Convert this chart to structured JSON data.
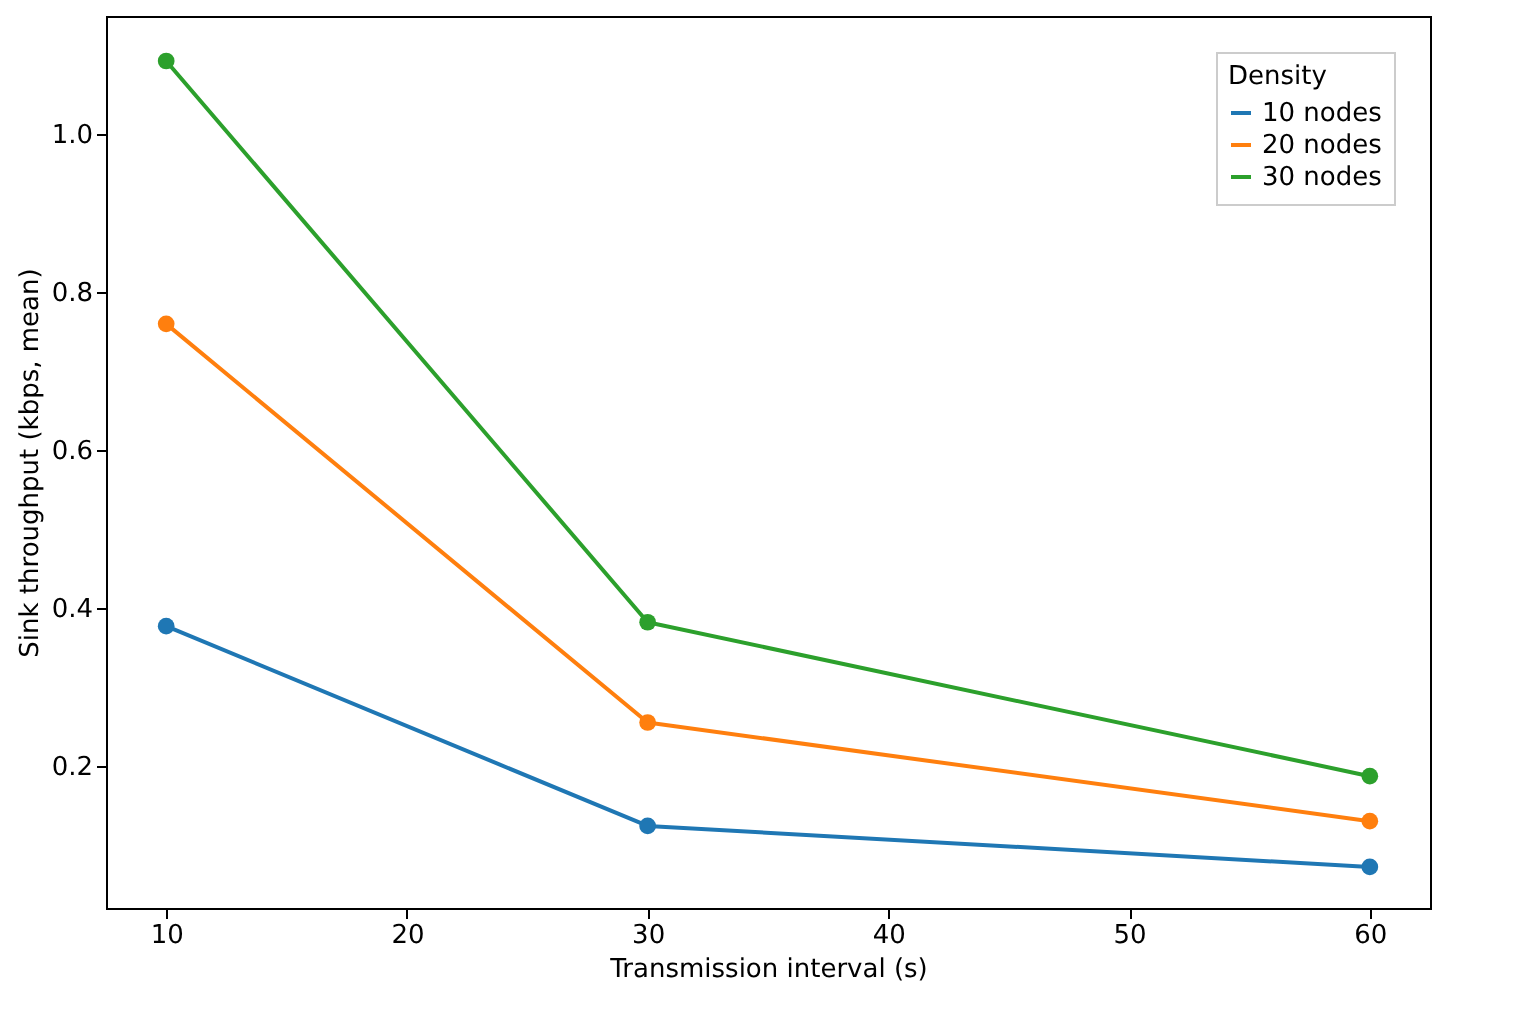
{
  "chart_data": {
    "type": "line",
    "xlabel": "Transmission interval (s)",
    "ylabel": "Sink throughput (kbps, mean)",
    "legend_title": "Density",
    "x": [
      10,
      30,
      60
    ],
    "series": [
      {
        "name": "10 nodes",
        "color": "#1f77b4",
        "values": [
          0.377,
          0.124,
          0.072
        ]
      },
      {
        "name": "20 nodes",
        "color": "#ff7f0e",
        "values": [
          0.76,
          0.255,
          0.13
        ]
      },
      {
        "name": "30 nodes",
        "color": "#2ca02c",
        "values": [
          1.093,
          0.382,
          0.187
        ]
      }
    ],
    "xlim": [
      7.5,
      62.5
    ],
    "xticks": [
      10,
      20,
      30,
      40,
      50,
      60
    ],
    "ylim": [
      0.02,
      1.15
    ],
    "yticks": [
      0.2,
      0.4,
      0.6,
      0.8,
      {
        "value": 1,
        "label": "1.0"
      }
    ],
    "legend": "top right",
    "marker": "circle",
    "line_style": "solid",
    "grid": false
  }
}
